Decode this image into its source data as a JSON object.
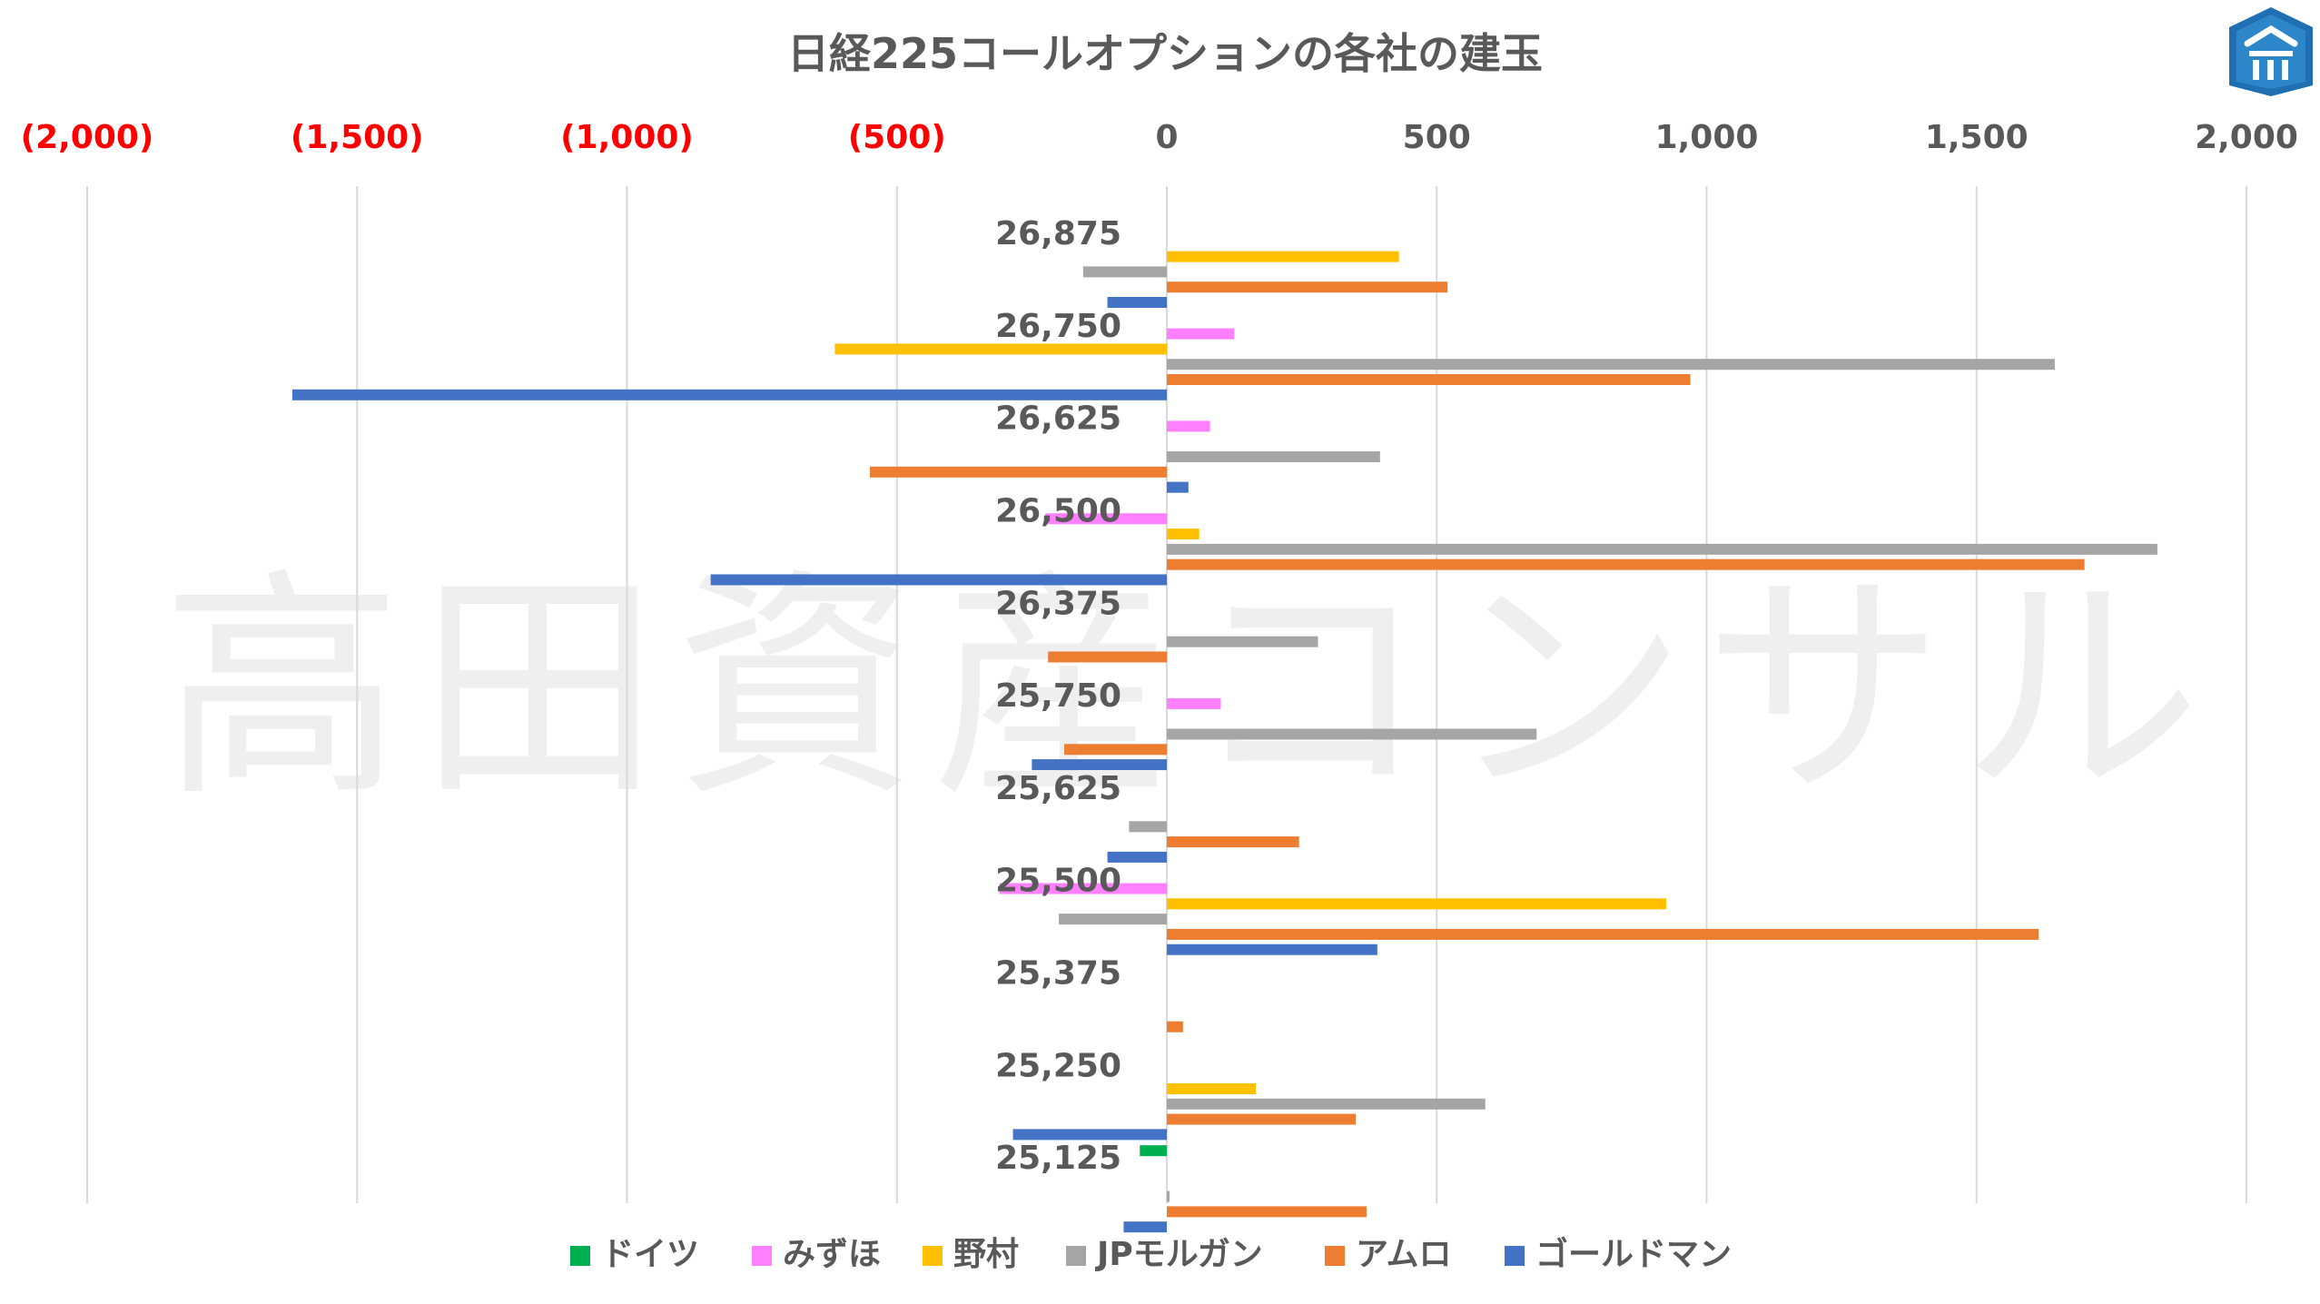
{
  "chart_data": {
    "type": "bar",
    "orientation": "horizontal",
    "title": "日経225コールオプションの各社の建玉",
    "watermark": "高田資産コンサル",
    "xlim": [
      -2000,
      2000
    ],
    "x_ticks": [
      {
        "value": -2000,
        "label": "(2,000)"
      },
      {
        "value": -1500,
        "label": "(1,500)"
      },
      {
        "value": -1000,
        "label": "(1,000)"
      },
      {
        "value": -500,
        "label": "(500)"
      },
      {
        "value": 0,
        "label": "0"
      },
      {
        "value": 500,
        "label": "500"
      },
      {
        "value": 1000,
        "label": "1,000"
      },
      {
        "value": 1500,
        "label": "1,500"
      },
      {
        "value": 2000,
        "label": "2,000"
      }
    ],
    "negative_tick_color": "#ff0000",
    "positive_tick_color": "#595959",
    "grid": true,
    "legend_position": "bottom",
    "categories": [
      "26,875",
      "26,750",
      "26,625",
      "26,500",
      "26,375",
      "25,750",
      "25,625",
      "25,500",
      "25,375",
      "25,250",
      "25,125"
    ],
    "series": [
      {
        "name": "ドイツ",
        "color": "#00b050",
        "values": [
          0,
          0,
          0,
          0,
          0,
          0,
          0,
          0,
          0,
          0,
          -50
        ]
      },
      {
        "name": "みずほ",
        "color": "#ff80ff",
        "values": [
          0,
          125,
          80,
          -225,
          0,
          100,
          0,
          -310,
          0,
          0,
          0
        ]
      },
      {
        "name": "野村",
        "color": "#ffc000",
        "values": [
          430,
          -615,
          0,
          60,
          0,
          0,
          0,
          925,
          0,
          165,
          0
        ]
      },
      {
        "name": "JPモルガン",
        "color": "#a5a5a5",
        "values": [
          -155,
          1645,
          395,
          1835,
          280,
          685,
          -70,
          -200,
          0,
          590,
          5
        ]
      },
      {
        "name": "アムロ",
        "color": "#ed7d31",
        "values": [
          520,
          970,
          -550,
          1700,
          -220,
          -190,
          245,
          1615,
          30,
          350,
          370
        ]
      },
      {
        "name": "ゴールドマン",
        "color": "#4472c4",
        "values": [
          -110,
          -1620,
          40,
          -845,
          0,
          -250,
          -110,
          390,
          0,
          -285,
          -80
        ]
      }
    ]
  }
}
